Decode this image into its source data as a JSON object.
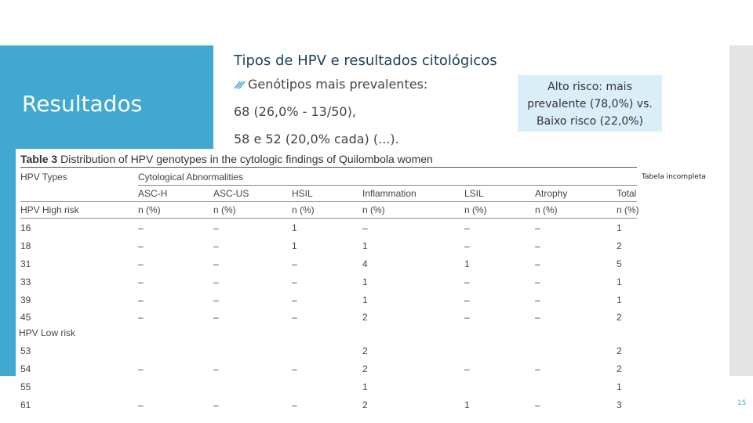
{
  "header": {
    "title": "Tipos de HPV e resultados citológicos",
    "section": "Resultados"
  },
  "bullet": "Genótipos mais prevalentes:",
  "points": [
    "68 (26,0% - 13/50),",
    "58 e 52 (20,0% cada) (...)."
  ],
  "callout": "Alto risco: mais prevalente (78,0%) vs. Baixo risco (22,0%)",
  "note": "Tabela incompleta",
  "page_number": "15",
  "table": {
    "caption_label": "Table 3",
    "caption": "Distribution of HPV genotypes in the cytologic findings of Quilombola women",
    "type_header": "HPV Types",
    "group_header": "Cytological Abnormalities",
    "columns": [
      null,
      "ASC-H",
      "ASC-US",
      "HSIL",
      "Inflammation",
      "LSIL",
      "Atrophy",
      "Total"
    ],
    "sub_header": [
      "HPV High risk",
      "n (%)",
      "n (%)",
      "n (%)",
      "n (%)",
      "n (%)",
      "n (%)",
      "n (%)"
    ],
    "high_rows": [
      [
        "16",
        "–",
        "–",
        1,
        "–",
        "–",
        "–",
        1
      ],
      [
        "18",
        "–",
        "–",
        1,
        1,
        "–",
        "–",
        2
      ],
      [
        "31",
        "–",
        "–",
        "–",
        4,
        1,
        "–",
        5
      ],
      [
        "33",
        "–",
        "–",
        "–",
        1,
        "–",
        "–",
        1
      ],
      [
        "39",
        "–",
        "–",
        "–",
        1,
        "–",
        "–",
        1
      ],
      [
        "45",
        "–",
        "–",
        "–",
        2,
        "–",
        "–",
        2
      ]
    ],
    "low_label": "HPV Low risk",
    "low_rows": [
      [
        "53",
        null,
        null,
        null,
        2,
        null,
        null,
        2
      ],
      [
        "54",
        "–",
        "–",
        "–",
        2,
        "–",
        "–",
        2
      ],
      [
        "55",
        null,
        null,
        null,
        1,
        null,
        null,
        1
      ],
      [
        "61",
        "–",
        "–",
        "–",
        2,
        1,
        "–",
        3
      ]
    ]
  }
}
